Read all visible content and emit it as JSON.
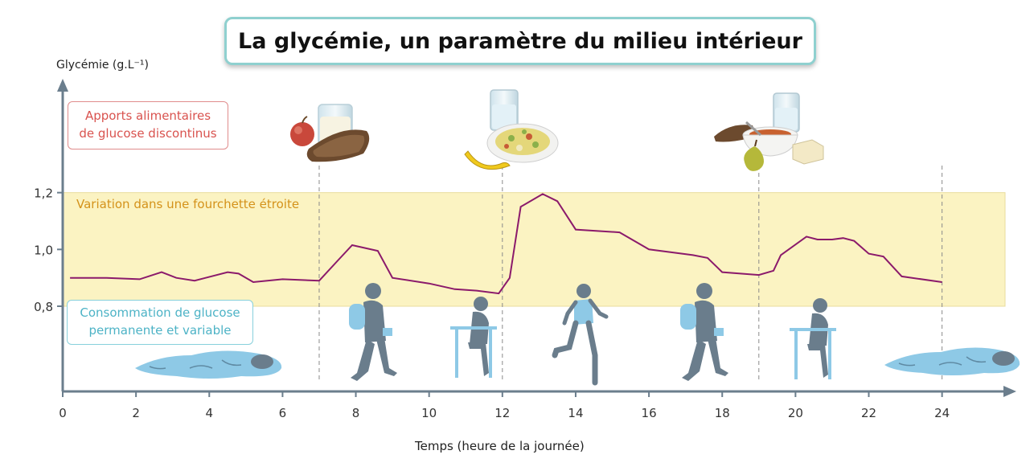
{
  "title": "La glycémie, un paramètre du milieu intérieur",
  "annotations": {
    "food_intake": [
      "Apports alimentaires",
      "de glucose discontinus"
    ],
    "consumption": [
      "Consommation de glucose",
      "permanente et variable"
    ],
    "band": "Variation dans une fourchette étroite"
  },
  "illustrations": {
    "meals": [
      "meal-breakfast",
      "meal-lunch",
      "meal-dinner"
    ],
    "activities": [
      "sleeping-person",
      "walking-student",
      "seated-student",
      "running-person",
      "walking-student",
      "seated-student",
      "sleeping-person"
    ]
  },
  "colors": {
    "line": "#8b1a6b",
    "band": "#fbf3c2",
    "axis": "#6b7e8d",
    "silhouette": "#6a7d8c",
    "sleeper": "#8ec9e6",
    "backpack": "#8ec9e6"
  },
  "chart_data": {
    "type": "line",
    "xlabel": "Temps (heure de la journée)",
    "ylabel": "Glycémie (g.L⁻¹)",
    "xlim": [
      0,
      25.5
    ],
    "ylim": [
      0.5,
      1.55
    ],
    "xticks": [
      0,
      2,
      4,
      6,
      8,
      10,
      12,
      14,
      16,
      18,
      20,
      22,
      24
    ],
    "xtick_labels": [
      "0",
      "2",
      "4",
      "6",
      "8",
      "10",
      "12",
      "14",
      "16",
      "18",
      "20",
      "22",
      "24"
    ],
    "yticks": [
      0.8,
      1.0,
      1.2
    ],
    "ytick_labels": [
      "0,8",
      "1,0",
      "1,2"
    ],
    "band": [
      0.8,
      1.2
    ],
    "meal_times": [
      7,
      12,
      19,
      24
    ],
    "series": [
      {
        "x": [
          0.2,
          1.2,
          2.1,
          2.7,
          3.1,
          3.6,
          4.5,
          4.8,
          5.2,
          6.0,
          7.0,
          7.5,
          7.9,
          8.6,
          9.0,
          10.0,
          10.7,
          11.3,
          11.9,
          12.2,
          12.5,
          13.1,
          13.5,
          14.0,
          15.2,
          16.0,
          17.2,
          17.6,
          18.0,
          19.0,
          19.4,
          19.6,
          20.3,
          20.6,
          21.0,
          21.3,
          21.6,
          22.0,
          22.4,
          22.9,
          24.0
        ],
        "y": [
          0.9,
          0.9,
          0.895,
          0.92,
          0.9,
          0.89,
          0.92,
          0.915,
          0.885,
          0.895,
          0.89,
          0.96,
          1.015,
          0.995,
          0.9,
          0.88,
          0.86,
          0.855,
          0.845,
          0.9,
          1.15,
          1.195,
          1.17,
          1.07,
          1.06,
          1.0,
          0.98,
          0.97,
          0.92,
          0.91,
          0.925,
          0.98,
          1.045,
          1.035,
          1.035,
          1.04,
          1.03,
          0.985,
          0.975,
          0.905,
          0.885
        ]
      }
    ]
  }
}
